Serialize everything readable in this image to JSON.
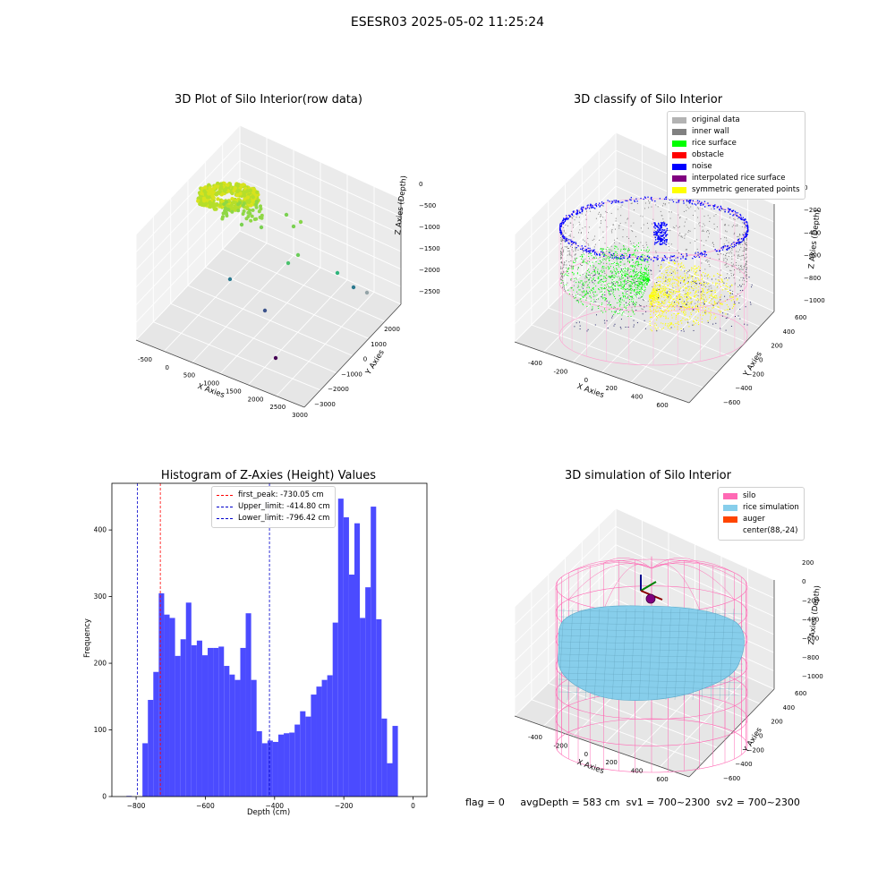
{
  "page": {
    "suptitle": "ESESR03 2025-05-02 11:25:24",
    "footer": "flag = 0     avgDepth = 583 cm  sv1 = 700~2300  sv2 = 700~2300"
  },
  "chart_data": [
    {
      "type": "scatter",
      "subtype": "3d",
      "title": "3D Plot of Silo Interior(row data)",
      "xlabel": "X Axies",
      "ylabel": "Y Axies",
      "zlabel": "Z Axies (Depth)",
      "x_ticks": [
        "-500",
        "0",
        "500",
        "1000",
        "1500",
        "2000",
        "2500",
        "3000"
      ],
      "y_ticks": [
        "2000",
        "1000",
        "0",
        "−1000",
        "−2000",
        "−3000"
      ],
      "z_ticks": [
        "0",
        "−500",
        "−1000",
        "−1500",
        "−2000",
        "−2500"
      ],
      "grid": true,
      "colormap": "viridis"
    },
    {
      "type": "scatter",
      "subtype": "3d",
      "title": "3D classify of Silo Interior",
      "xlabel": "X Axies",
      "ylabel": "Y Axies",
      "zlabel": "Z Axies (Depth)",
      "x_ticks": [
        "-400",
        "-200",
        "0",
        "200",
        "400",
        "600"
      ],
      "y_ticks": [
        "600",
        "400",
        "200",
        "0",
        "−200",
        "−400",
        "−600"
      ],
      "z_ticks": [
        "0",
        "−200",
        "−400",
        "−600",
        "−800",
        "−1000"
      ],
      "grid": true,
      "legend_position": "top-right",
      "legend": [
        {
          "label": "original data",
          "color": "#b3b3b3"
        },
        {
          "label": "inner wall",
          "color": "#808080"
        },
        {
          "label": "rice surface",
          "color": "#00ff00"
        },
        {
          "label": "obstacle",
          "color": "#ff0000"
        },
        {
          "label": "noise",
          "color": "#0000ff"
        },
        {
          "label": "interpolated rice surface",
          "color": "#800080"
        },
        {
          "label": "symmetric generated points",
          "color": "#ffff00"
        }
      ]
    },
    {
      "type": "bar",
      "subtype": "histogram",
      "title": "Histogram of Z-Axies (Height) Values",
      "xlabel": "Depth (cm)",
      "ylabel": "Frequency",
      "xlim": [
        -870,
        40
      ],
      "ylim": [
        0,
        470
      ],
      "x_ticks": [
        -800,
        -600,
        -400,
        -200,
        0
      ],
      "y_ticks": [
        0,
        100,
        200,
        300,
        400
      ],
      "bar_color": "#4b4bff",
      "bin_width": 15.7,
      "bins": [
        {
          "x": -828,
          "v": 1
        },
        {
          "x": -781.7,
          "v": 80
        },
        {
          "x": -766,
          "v": 145
        },
        {
          "x": -750.3,
          "v": 187
        },
        {
          "x": -734.6,
          "v": 305
        },
        {
          "x": -718.9,
          "v": 273
        },
        {
          "x": -703.2,
          "v": 268
        },
        {
          "x": -687.5,
          "v": 211
        },
        {
          "x": -671.8,
          "v": 236
        },
        {
          "x": -656.1,
          "v": 291
        },
        {
          "x": -640.4,
          "v": 227
        },
        {
          "x": -624.7,
          "v": 234
        },
        {
          "x": -609,
          "v": 212
        },
        {
          "x": -593.3,
          "v": 223
        },
        {
          "x": -577.6,
          "v": 223
        },
        {
          "x": -561.9,
          "v": 225
        },
        {
          "x": -546.2,
          "v": 196
        },
        {
          "x": -530.5,
          "v": 183
        },
        {
          "x": -514.8,
          "v": 175
        },
        {
          "x": -499.1,
          "v": 223
        },
        {
          "x": -483.4,
          "v": 275
        },
        {
          "x": -467.7,
          "v": 175
        },
        {
          "x": -452,
          "v": 98
        },
        {
          "x": -436.3,
          "v": 80
        },
        {
          "x": -420.6,
          "v": 84
        },
        {
          "x": -404.9,
          "v": 82
        },
        {
          "x": -389.2,
          "v": 93
        },
        {
          "x": -373.5,
          "v": 95
        },
        {
          "x": -357.8,
          "v": 96
        },
        {
          "x": -342.1,
          "v": 108
        },
        {
          "x": -326.4,
          "v": 128
        },
        {
          "x": -310.7,
          "v": 120
        },
        {
          "x": -295,
          "v": 153
        },
        {
          "x": -279.3,
          "v": 165
        },
        {
          "x": -263.6,
          "v": 175
        },
        {
          "x": -247.9,
          "v": 182
        },
        {
          "x": -232.2,
          "v": 261
        },
        {
          "x": -216.5,
          "v": 447
        },
        {
          "x": -200.8,
          "v": 419
        },
        {
          "x": -185.1,
          "v": 333
        },
        {
          "x": -169.4,
          "v": 410
        },
        {
          "x": -153.7,
          "v": 268
        },
        {
          "x": -138,
          "v": 314
        },
        {
          "x": -122.3,
          "v": 435
        },
        {
          "x": -106.6,
          "v": 266
        },
        {
          "x": -90.9,
          "v": 117
        },
        {
          "x": -75.2,
          "v": 50
        },
        {
          "x": -59.5,
          "v": 106
        }
      ],
      "vlines": [
        {
          "label": "first_peak: -730.05 cm",
          "x": -730.05,
          "color": "#ff0000"
        },
        {
          "label": "Upper_limit: -414.80 cm",
          "x": -414.8,
          "color": "#0000cc"
        },
        {
          "label": "Lower_limit: -796.42 cm",
          "x": -796.42,
          "color": "#0000cc"
        }
      ],
      "legend_position": "top"
    },
    {
      "type": "scatter",
      "subtype": "3d",
      "title": "3D simulation of Silo Interior",
      "xlabel": "X Axies",
      "ylabel": "Y Axies",
      "zlabel": "Z Axies (Depth)",
      "x_ticks": [
        "-400",
        "-200",
        "0",
        "200",
        "400",
        "600"
      ],
      "y_ticks": [
        "600",
        "400",
        "200",
        "0",
        "−200",
        "−400",
        "−600"
      ],
      "z_ticks": [
        "200",
        "0",
        "−200",
        "−400",
        "−600",
        "−800",
        "−1000"
      ],
      "grid": true,
      "legend_position": "top-right",
      "legend": [
        {
          "label": "silo",
          "color": "#ff69b4"
        },
        {
          "label": "rice simulation",
          "color": "#87ceeb"
        },
        {
          "label": "auger",
          "color": "#ff4500"
        },
        {
          "label": "center(88,-24)",
          "color": "#ffffff"
        }
      ]
    }
  ]
}
